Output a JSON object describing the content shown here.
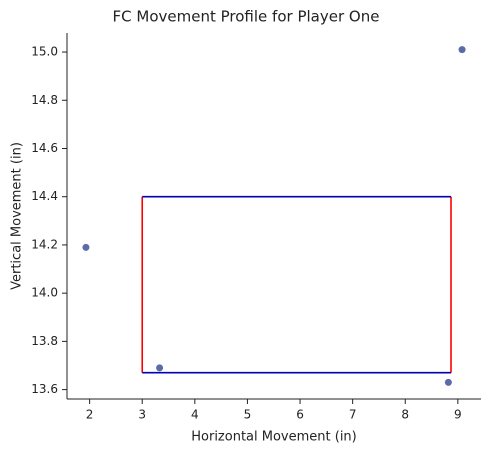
{
  "chart_data": {
    "type": "scatter",
    "title": "FC Movement Profile for Player One",
    "x_label": "Horizontal Movement (in)",
    "y_label": "Vertical Movement (in)",
    "series": [
      {
        "color": "#5c6aa6",
        "x": [
          1.93,
          3.33,
          9.08,
          8.82
        ],
        "values": [
          14.19,
          13.69,
          15.01,
          13.63
        ]
      }
    ],
    "zone": {
      "x": [
        3,
        8.87
      ],
      "y": [
        13.67,
        14.4
      ],
      "side_color": "#ff0000",
      "edge_color": "#0000b4"
    },
    "xlim": [
      1.57,
      9.44
    ],
    "xticks": [
      2,
      3,
      4,
      5,
      6,
      7,
      8,
      9
    ],
    "ylim": [
      13.561,
      15.079
    ],
    "yticks": [
      {
        "value": 13.6,
        "label": "13.6"
      },
      {
        "value": 13.8,
        "label": "13.8"
      },
      {
        "value": 14.0,
        "label": "14.0"
      },
      {
        "value": 14.2,
        "label": "14.2"
      },
      {
        "value": 14.4,
        "label": "14.4"
      },
      {
        "value": 14.6,
        "label": "14.6"
      },
      {
        "value": 14.8,
        "label": "14.8"
      },
      {
        "value": 15.0,
        "label": "15.0"
      }
    ],
    "grid": false
  }
}
